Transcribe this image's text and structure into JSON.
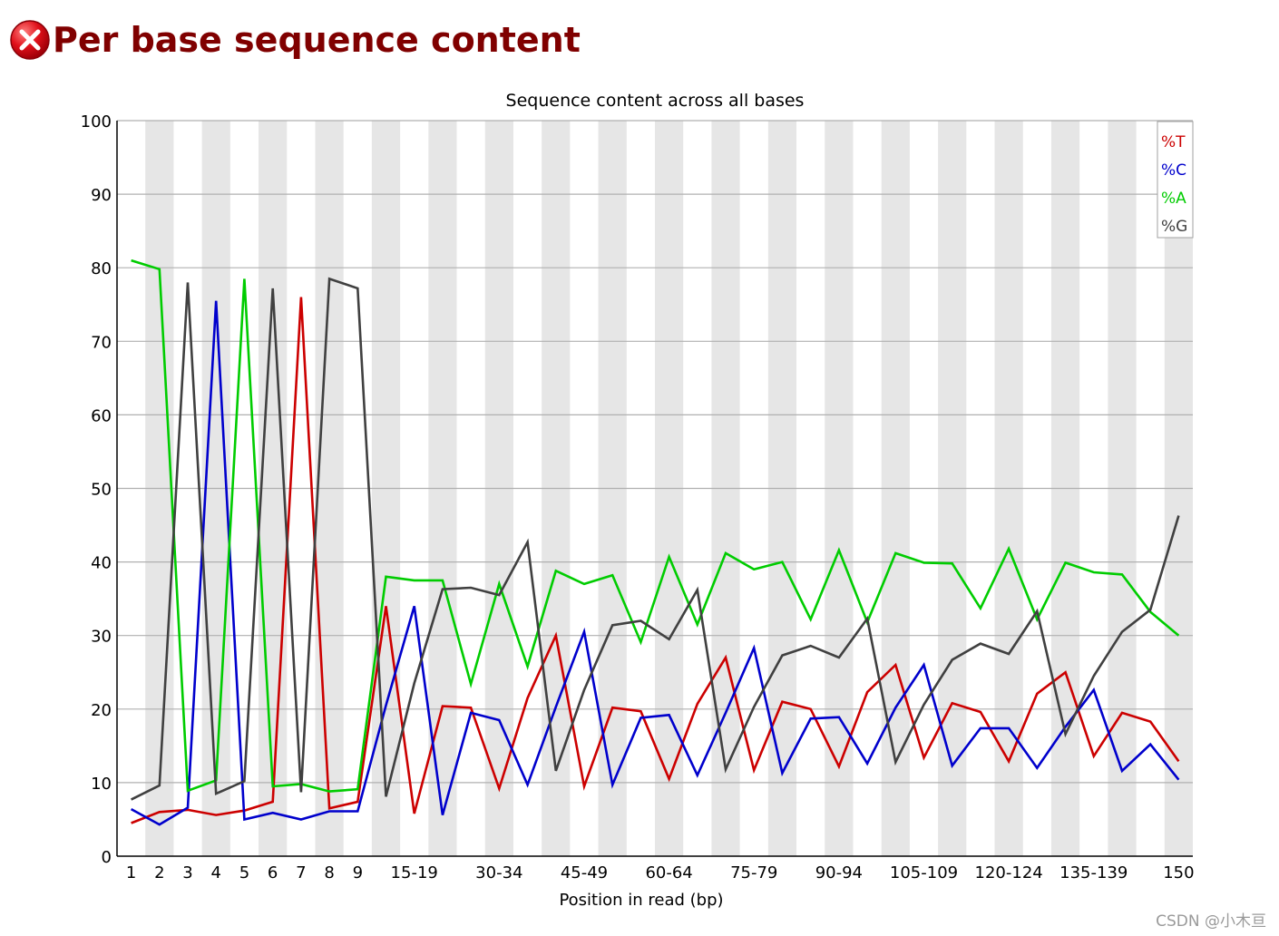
{
  "header": {
    "status_icon": "fail-x-icon",
    "title": "Per base sequence content"
  },
  "watermark": "CSDN @小木亘",
  "colors": {
    "T": "#cc0000",
    "C": "#0000cc",
    "A": "#00cc00",
    "G": "#404040",
    "title": "#800000",
    "fail_icon": "#e0101a"
  },
  "chart_data": {
    "type": "line",
    "title": "Sequence content across all bases",
    "xlabel": "Position in read (bp)",
    "ylabel": "",
    "ylim": [
      0,
      100
    ],
    "yticks": [
      0,
      10,
      20,
      30,
      40,
      50,
      60,
      70,
      80,
      90,
      100
    ],
    "grid": true,
    "legend_position": "top-right",
    "categories": [
      "1",
      "2",
      "3",
      "4",
      "5",
      "6",
      "7",
      "8",
      "9",
      "10-14",
      "15-19",
      "20-24",
      "25-29",
      "30-34",
      "35-39",
      "40-44",
      "45-49",
      "50-54",
      "55-59",
      "60-64",
      "65-69",
      "70-74",
      "75-79",
      "80-84",
      "85-89",
      "90-94",
      "95-99",
      "100-104",
      "105-109",
      "110-114",
      "115-119",
      "120-124",
      "125-129",
      "130-134",
      "135-139",
      "140-144",
      "145-149",
      "150"
    ],
    "tick_labels": [
      "1",
      "2",
      "3",
      "4",
      "5",
      "6",
      "7",
      "8",
      "9",
      "",
      "15-19",
      "",
      "",
      "30-34",
      "",
      "",
      "45-49",
      "",
      "",
      "60-64",
      "",
      "",
      "75-79",
      "",
      "",
      "90-94",
      "",
      "",
      "105-109",
      "",
      "",
      "120-124",
      "",
      "",
      "135-139",
      "",
      "",
      "150"
    ],
    "series": [
      {
        "name": "%T",
        "color": "#cc0000",
        "values": [
          4.5,
          6,
          6.3,
          5.6,
          6.2,
          7.4,
          76,
          6.5,
          7.4,
          34,
          5.8,
          20.4,
          20.2,
          9.2,
          21.5,
          30,
          9.5,
          20.2,
          19.7,
          10.5,
          20.7,
          27,
          11.7,
          21,
          20,
          12.2,
          22.3,
          26,
          13.4,
          20.8,
          19.6,
          12.9,
          22.1,
          25,
          13.6,
          19.5,
          18.3,
          12.9
        ]
      },
      {
        "name": "%C",
        "color": "#0000cc",
        "values": [
          6.4,
          4.3,
          6.6,
          75.5,
          5,
          5.9,
          5,
          6.1,
          6.1,
          20.5,
          34,
          5.6,
          19.5,
          18.5,
          9.7,
          20.3,
          30.5,
          9.7,
          18.8,
          19.2,
          11,
          19.5,
          28.3,
          11.3,
          18.7,
          18.9,
          12.6,
          20.2,
          26,
          12.3,
          17.4,
          17.4,
          12,
          17.6,
          22.6,
          11.6,
          15.2,
          10.4
        ]
      },
      {
        "name": "%A",
        "color": "#00cc00",
        "values": [
          81,
          79.8,
          8.9,
          10.3,
          78.5,
          9.5,
          9.8,
          8.8,
          9.1,
          38,
          37.5,
          37.5,
          23.4,
          37,
          25.8,
          38.8,
          37,
          38.2,
          29.1,
          40.7,
          31.5,
          41.2,
          39,
          40,
          32.2,
          41.6,
          31.8,
          41.2,
          39.9,
          39.8,
          33.7,
          41.8,
          32.2,
          39.9,
          38.6,
          38.3,
          33.2,
          30
        ]
      },
      {
        "name": "%G",
        "color": "#404040",
        "values": [
          7.7,
          9.6,
          78,
          8.5,
          10.2,
          77.2,
          8.7,
          78.5,
          77.2,
          8.1,
          23.5,
          36.3,
          36.5,
          35.5,
          42.7,
          11.6,
          22.6,
          31.4,
          32,
          29.5,
          36.2,
          11.8,
          20.3,
          27.3,
          28.6,
          27,
          32.3,
          12.8,
          20.6,
          26.7,
          28.9,
          27.5,
          33.3,
          16.6,
          24.5,
          30.5,
          33.5,
          46.3
        ]
      }
    ]
  }
}
